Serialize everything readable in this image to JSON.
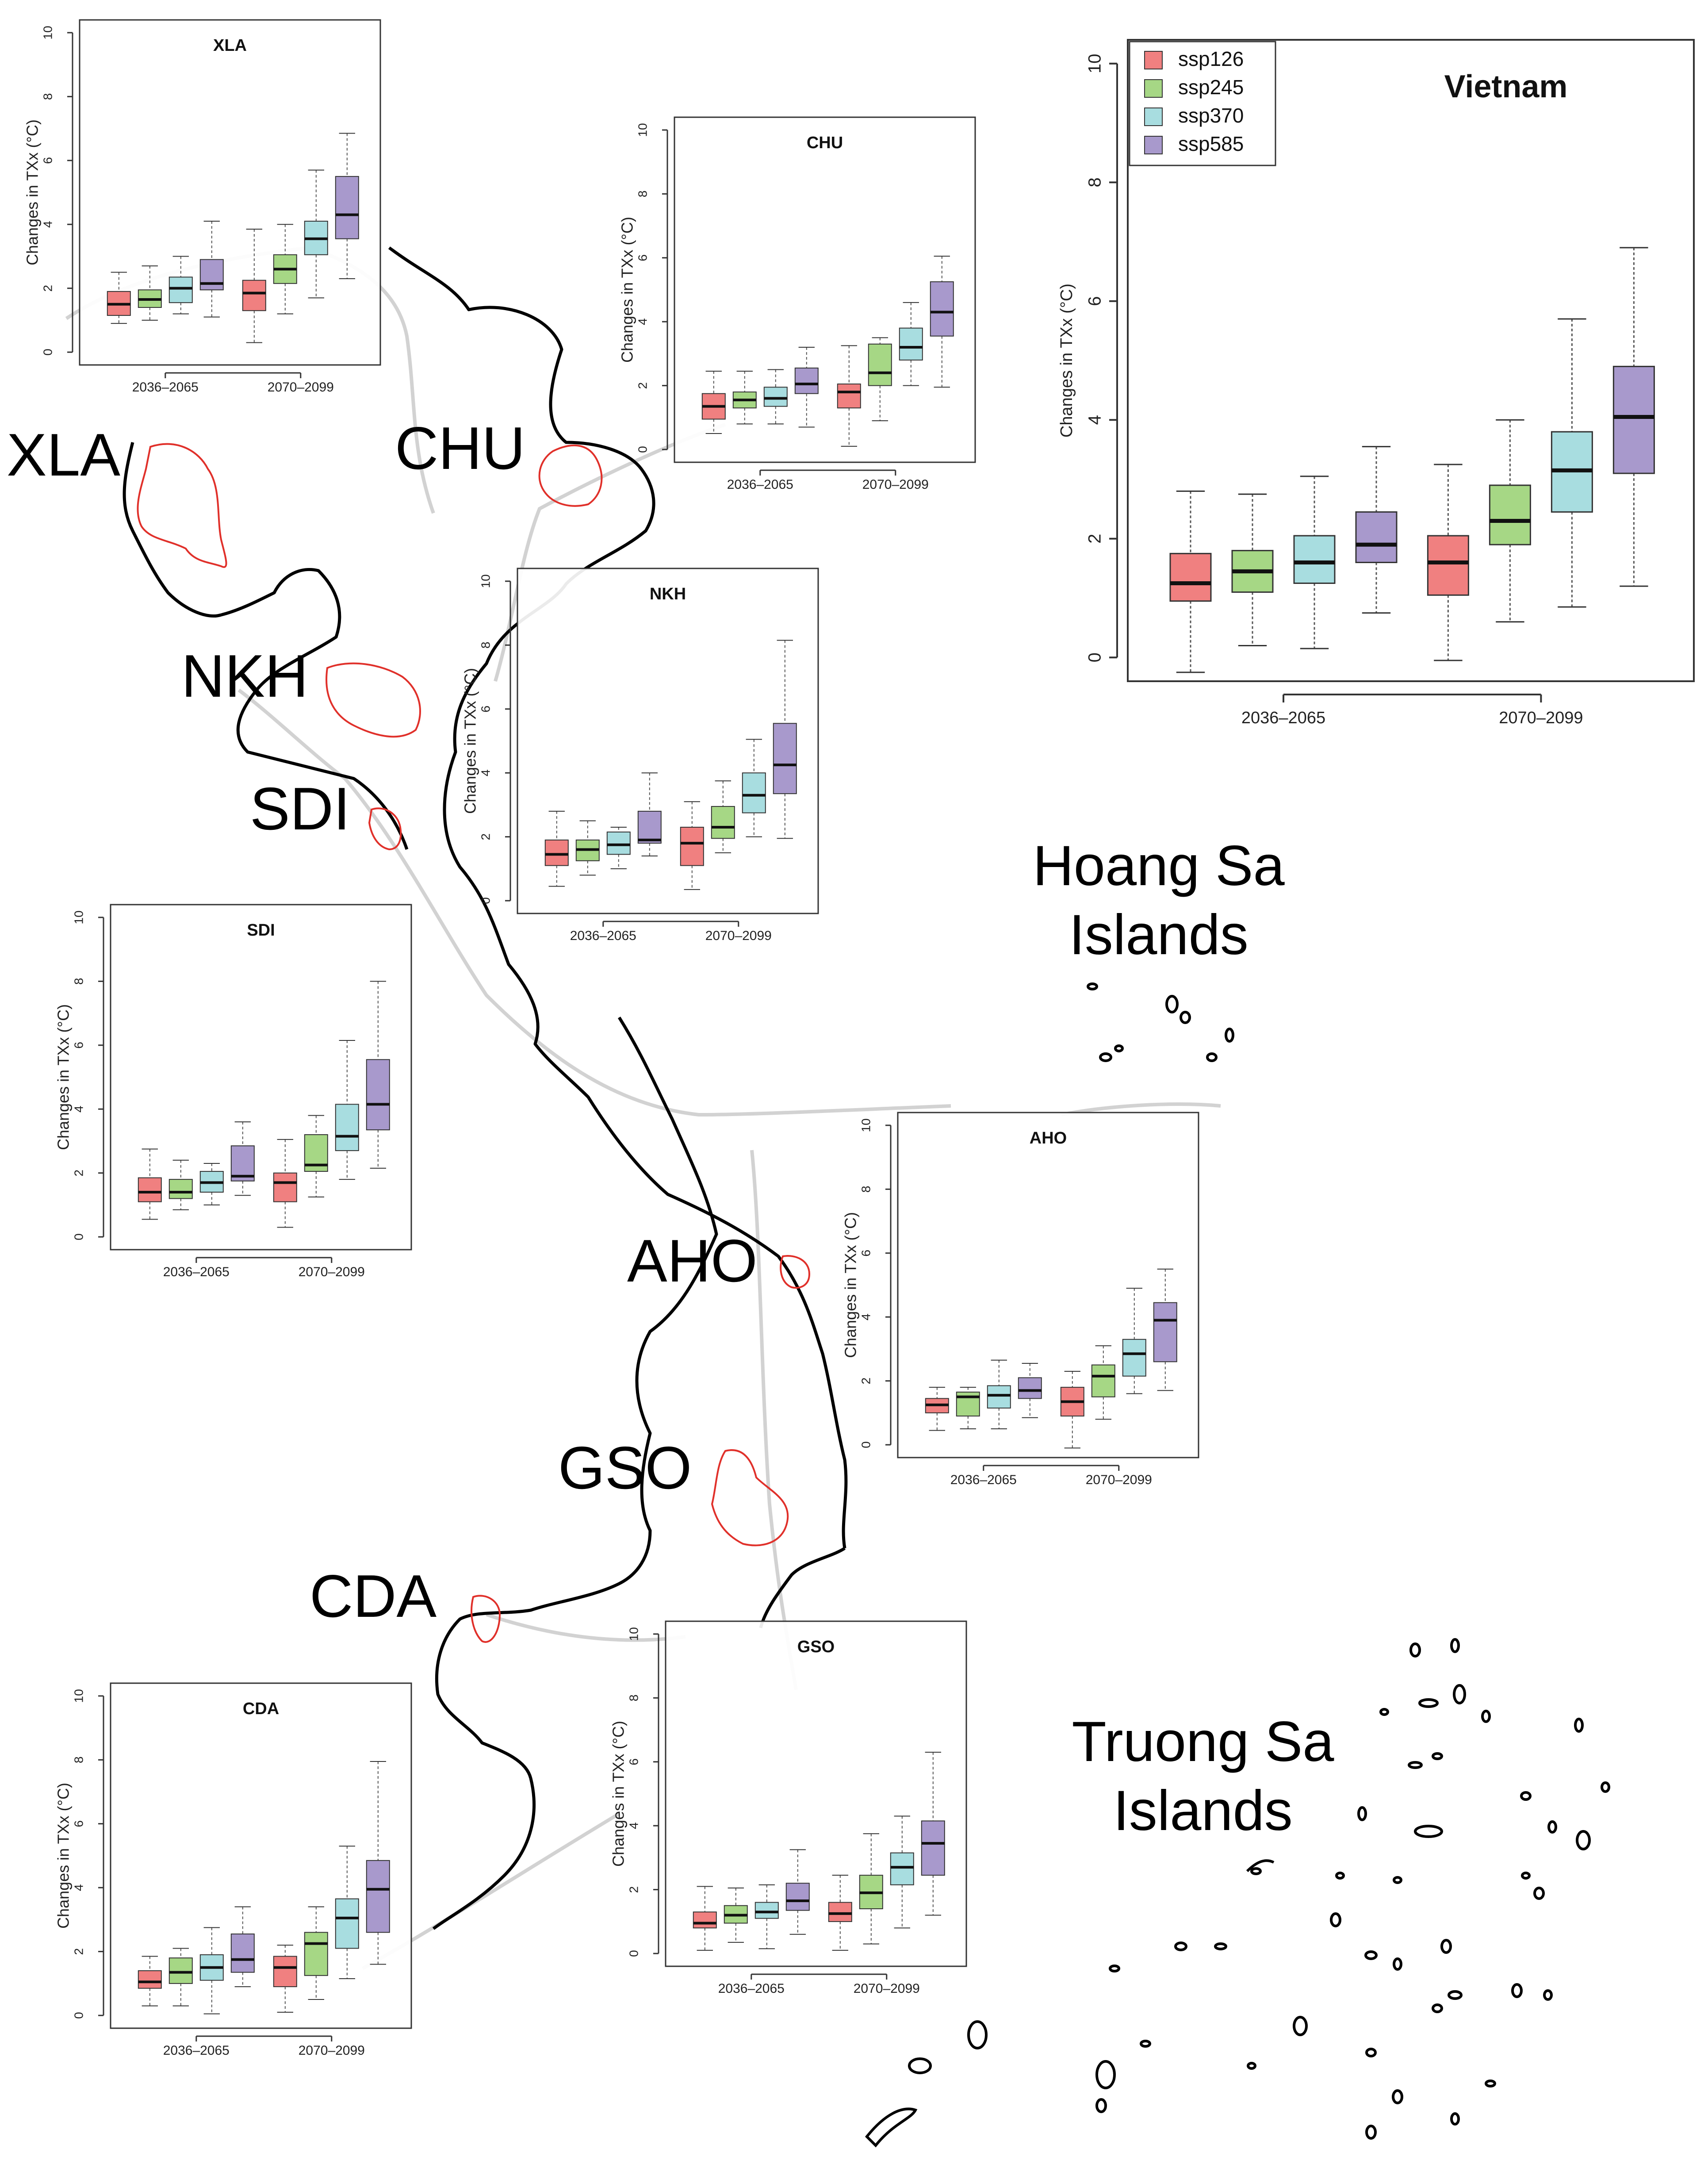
{
  "region_labels": [
    "XLA",
    "CHU",
    "NKH",
    "SDI",
    "AHO",
    "GSO",
    "CDA"
  ],
  "islands": {
    "hoang_sa": [
      "Hoang Sa",
      "Islands"
    ],
    "truong_sa": [
      "Truong Sa",
      "Islands"
    ]
  },
  "colors": {
    "ssp126": "#f08080",
    "ssp245": "#a6d785",
    "ssp370": "#a8dde0",
    "ssp585": "#a899cc",
    "coast": "#000000",
    "region_outline": "#e0302a",
    "gray_line": "#cfcfcf"
  },
  "chart_data": [
    {
      "id": "vietnam",
      "type": "box",
      "title": "Vietnam",
      "ylabel": "Changes in TXx (°C)",
      "ylim": [
        0,
        10
      ],
      "yticks": [
        "0",
        "2",
        "4",
        "6",
        "8",
        "10"
      ],
      "categories": [
        "2036–2065",
        "2070–2099"
      ],
      "legend": [
        "ssp126",
        "ssp245",
        "ssp370",
        "ssp585"
      ],
      "series": [
        {
          "name": "ssp126",
          "boxes": [
            [
              -0.25,
              0.95,
              1.25,
              1.75,
              2.8
            ],
            [
              -0.05,
              1.05,
              1.6,
              2.05,
              3.25
            ]
          ]
        },
        {
          "name": "ssp245",
          "boxes": [
            [
              0.2,
              1.1,
              1.45,
              1.8,
              2.75
            ],
            [
              0.6,
              1.9,
              2.3,
              2.9,
              4.0
            ]
          ]
        },
        {
          "name": "ssp370",
          "boxes": [
            [
              0.15,
              1.25,
              1.6,
              2.05,
              3.05
            ],
            [
              0.85,
              2.45,
              3.15,
              3.8,
              5.7
            ]
          ]
        },
        {
          "name": "ssp585",
          "boxes": [
            [
              0.75,
              1.6,
              1.9,
              2.45,
              3.55
            ],
            [
              1.2,
              3.1,
              4.05,
              4.9,
              6.9
            ]
          ]
        }
      ]
    },
    {
      "id": "xla",
      "type": "box",
      "title": "XLA",
      "ylabel": "Changes in TXx (°C)",
      "ylim": [
        0,
        10
      ],
      "yticks": [
        "0",
        "2",
        "4",
        "6",
        "8",
        "10"
      ],
      "categories": [
        "2036–2065",
        "2070–2099"
      ],
      "series": [
        {
          "name": "ssp126",
          "boxes": [
            [
              0.9,
              1.15,
              1.5,
              1.9,
              2.5
            ],
            [
              0.3,
              1.3,
              1.85,
              2.25,
              3.85
            ]
          ]
        },
        {
          "name": "ssp245",
          "boxes": [
            [
              1.0,
              1.4,
              1.65,
              1.95,
              2.7
            ],
            [
              1.2,
              2.15,
              2.6,
              3.05,
              4.0
            ]
          ]
        },
        {
          "name": "ssp370",
          "boxes": [
            [
              1.2,
              1.55,
              2.0,
              2.35,
              3.0
            ],
            [
              1.7,
              3.05,
              3.55,
              4.1,
              5.7
            ]
          ]
        },
        {
          "name": "ssp585",
          "boxes": [
            [
              1.1,
              1.95,
              2.15,
              2.9,
              4.1
            ],
            [
              2.3,
              3.55,
              4.3,
              5.5,
              6.85
            ]
          ]
        }
      ]
    },
    {
      "id": "chu",
      "type": "box",
      "title": "CHU",
      "ylabel": "Changes in TXx (°C)",
      "ylim": [
        0,
        10
      ],
      "yticks": [
        "0",
        "2",
        "4",
        "6",
        "8",
        "10"
      ],
      "categories": [
        "2036–2065",
        "2070–2099"
      ],
      "series": [
        {
          "name": "ssp126",
          "boxes": [
            [
              0.5,
              0.95,
              1.35,
              1.75,
              2.45
            ],
            [
              0.1,
              1.3,
              1.8,
              2.05,
              3.25
            ]
          ]
        },
        {
          "name": "ssp245",
          "boxes": [
            [
              0.8,
              1.3,
              1.55,
              1.8,
              2.45
            ],
            [
              0.9,
              2.0,
              2.4,
              3.3,
              3.5
            ]
          ]
        },
        {
          "name": "ssp370",
          "boxes": [
            [
              0.8,
              1.35,
              1.6,
              1.95,
              2.5
            ],
            [
              2.0,
              2.8,
              3.2,
              3.8,
              4.6
            ]
          ]
        },
        {
          "name": "ssp585",
          "boxes": [
            [
              0.7,
              1.75,
              2.05,
              2.55,
              3.2
            ],
            [
              1.95,
              3.55,
              4.3,
              5.25,
              6.05
            ]
          ]
        }
      ]
    },
    {
      "id": "nkh",
      "type": "box",
      "title": "NKH",
      "ylabel": "Changes in TXx (°C)",
      "ylim": [
        0,
        10
      ],
      "yticks": [
        "0",
        "2",
        "4",
        "6",
        "8",
        "10"
      ],
      "categories": [
        "2036–2065",
        "2070–2099"
      ],
      "series": [
        {
          "name": "ssp126",
          "boxes": [
            [
              0.45,
              1.1,
              1.45,
              1.9,
              2.8
            ],
            [
              0.35,
              1.1,
              1.8,
              2.3,
              3.1
            ]
          ]
        },
        {
          "name": "ssp245",
          "boxes": [
            [
              0.8,
              1.25,
              1.6,
              1.9,
              2.5
            ],
            [
              1.5,
              1.95,
              2.3,
              2.95,
              3.75
            ]
          ]
        },
        {
          "name": "ssp370",
          "boxes": [
            [
              1.0,
              1.45,
              1.75,
              2.15,
              2.3
            ],
            [
              2.0,
              2.75,
              3.3,
              4.0,
              5.05
            ]
          ]
        },
        {
          "name": "ssp585",
          "boxes": [
            [
              1.4,
              1.8,
              1.9,
              2.8,
              4.0
            ],
            [
              1.95,
              3.35,
              4.25,
              5.55,
              8.15
            ]
          ]
        }
      ]
    },
    {
      "id": "sdi",
      "type": "box",
      "title": "SDI",
      "ylabel": "Changes in TXx (°C)",
      "ylim": [
        0,
        10
      ],
      "yticks": [
        "0",
        "2",
        "4",
        "6",
        "8",
        "10"
      ],
      "categories": [
        "2036–2065",
        "2070–2099"
      ],
      "series": [
        {
          "name": "ssp126",
          "boxes": [
            [
              0.55,
              1.1,
              1.4,
              1.85,
              2.75
            ],
            [
              0.3,
              1.1,
              1.7,
              2.0,
              3.05
            ]
          ]
        },
        {
          "name": "ssp245",
          "boxes": [
            [
              0.85,
              1.2,
              1.4,
              1.8,
              2.4
            ],
            [
              1.25,
              2.05,
              2.25,
              3.2,
              3.8
            ]
          ]
        },
        {
          "name": "ssp370",
          "boxes": [
            [
              1.0,
              1.4,
              1.7,
              2.05,
              2.3
            ],
            [
              1.8,
              2.7,
              3.15,
              4.15,
              6.15
            ]
          ]
        },
        {
          "name": "ssp585",
          "boxes": [
            [
              1.3,
              1.75,
              1.9,
              2.85,
              3.6
            ],
            [
              2.15,
              3.35,
              4.15,
              5.55,
              8.0
            ]
          ]
        }
      ]
    },
    {
      "id": "aho",
      "type": "box",
      "title": "AHO",
      "ylabel": "Changes in TXx (°C)",
      "ylim": [
        0,
        10
      ],
      "yticks": [
        "0",
        "2",
        "4",
        "6",
        "8",
        "10"
      ],
      "categories": [
        "2036–2065",
        "2070–2099"
      ],
      "series": [
        {
          "name": "ssp126",
          "boxes": [
            [
              0.45,
              1.0,
              1.25,
              1.45,
              1.8
            ],
            [
              -0.1,
              0.9,
              1.35,
              1.8,
              2.3
            ]
          ]
        },
        {
          "name": "ssp245",
          "boxes": [
            [
              0.5,
              0.9,
              1.5,
              1.65,
              1.8
            ],
            [
              0.8,
              1.5,
              2.15,
              2.5,
              3.1
            ]
          ]
        },
        {
          "name": "ssp370",
          "boxes": [
            [
              0.5,
              1.15,
              1.55,
              1.85,
              2.65
            ],
            [
              1.6,
              2.15,
              2.85,
              3.3,
              4.9
            ]
          ]
        },
        {
          "name": "ssp585",
          "boxes": [
            [
              0.85,
              1.45,
              1.7,
              2.1,
              2.55
            ],
            [
              1.7,
              2.6,
              3.9,
              4.45,
              5.5
            ]
          ]
        }
      ]
    },
    {
      "id": "gso",
      "type": "box",
      "title": "GSO",
      "ylabel": "Changes in TXx (°C)",
      "ylim": [
        0,
        10
      ],
      "yticks": [
        "0",
        "2",
        "4",
        "6",
        "8",
        "10"
      ],
      "categories": [
        "2036–2065",
        "2070–2099"
      ],
      "series": [
        {
          "name": "ssp126",
          "boxes": [
            [
              0.1,
              0.8,
              0.95,
              1.3,
              2.1
            ],
            [
              0.1,
              1.0,
              1.25,
              1.6,
              2.45
            ]
          ]
        },
        {
          "name": "ssp245",
          "boxes": [
            [
              0.35,
              0.95,
              1.2,
              1.5,
              2.05
            ],
            [
              0.3,
              1.4,
              1.9,
              2.45,
              3.75
            ]
          ]
        },
        {
          "name": "ssp370",
          "boxes": [
            [
              0.15,
              1.1,
              1.3,
              1.6,
              2.15
            ],
            [
              0.8,
              2.15,
              2.7,
              3.15,
              4.3
            ]
          ]
        },
        {
          "name": "ssp585",
          "boxes": [
            [
              0.6,
              1.35,
              1.65,
              2.2,
              3.25
            ],
            [
              1.2,
              2.45,
              3.45,
              4.15,
              6.3
            ]
          ]
        }
      ]
    },
    {
      "id": "cda",
      "type": "box",
      "title": "CDA",
      "ylabel": "Changes in TXx (°C)",
      "ylim": [
        0,
        10
      ],
      "yticks": [
        "0",
        "2",
        "4",
        "6",
        "8",
        "10"
      ],
      "categories": [
        "2036–2065",
        "2070–2099"
      ],
      "series": [
        {
          "name": "ssp126",
          "boxes": [
            [
              0.3,
              0.85,
              1.05,
              1.4,
              1.85
            ],
            [
              0.1,
              0.9,
              1.5,
              1.85,
              2.2
            ]
          ]
        },
        {
          "name": "ssp245",
          "boxes": [
            [
              0.3,
              1.0,
              1.35,
              1.8,
              2.1
            ],
            [
              0.5,
              1.25,
              2.25,
              2.6,
              3.4
            ]
          ]
        },
        {
          "name": "ssp370",
          "boxes": [
            [
              0.05,
              1.1,
              1.5,
              1.9,
              2.75
            ],
            [
              1.15,
              2.1,
              3.05,
              3.65,
              5.3
            ]
          ]
        },
        {
          "name": "ssp585",
          "boxes": [
            [
              0.9,
              1.35,
              1.75,
              2.55,
              3.4
            ],
            [
              1.6,
              2.6,
              3.95,
              4.85,
              7.95
            ]
          ]
        }
      ]
    }
  ]
}
